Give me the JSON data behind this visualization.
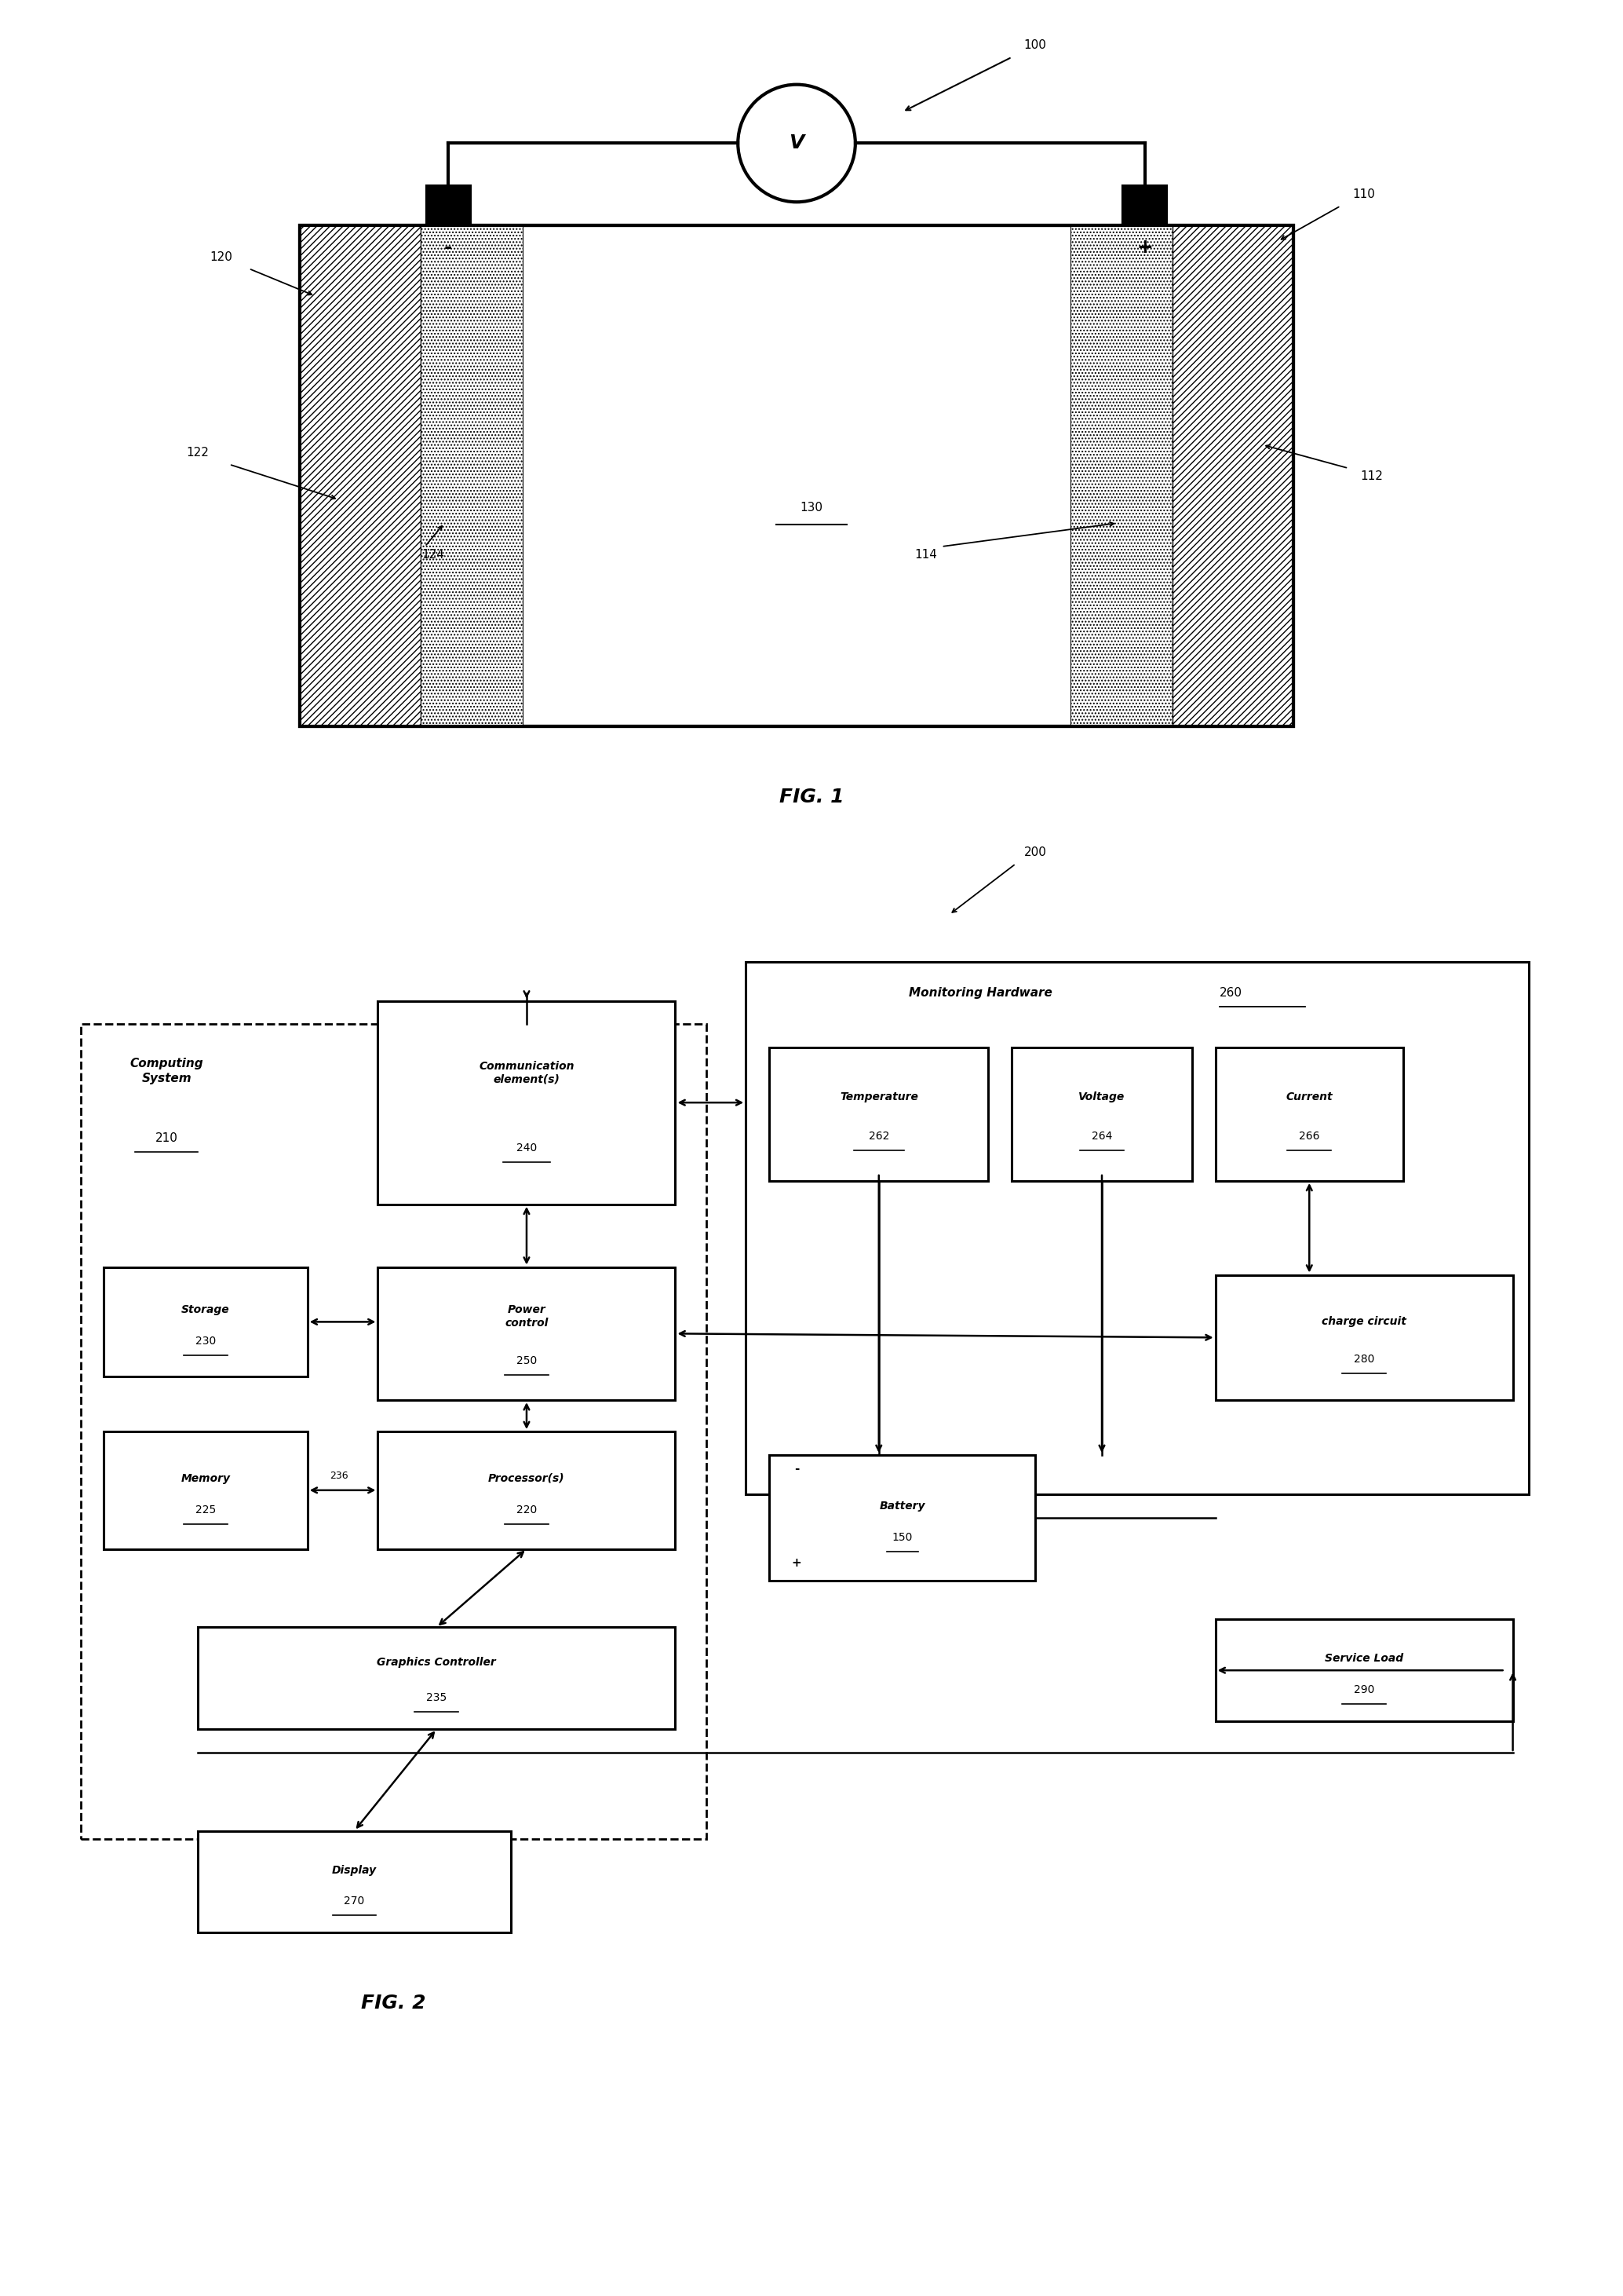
{
  "fig_width": 20.68,
  "fig_height": 29.24,
  "bg_color": "#ffffff",
  "fig1": {
    "label": "FIG. 1",
    "ref_100": "100",
    "ref_110": "110",
    "ref_120": "120",
    "ref_122": "122",
    "ref_124": "124",
    "ref_114": "114",
    "ref_112": "112",
    "ref_130": "130",
    "voltmeter_label": "V",
    "minus_label": "-",
    "plus_label": "+"
  },
  "fig2": {
    "label": "FIG. 2",
    "ref_200": "200",
    "computing_system": "Computing\nSystem",
    "ref_210": "210",
    "communication": "Communication\nelement(s)",
    "ref_240": "240",
    "power_control": "Power\ncontrol",
    "ref_250": "250",
    "storage": "Storage",
    "ref_230": "230",
    "memory": "Memory",
    "ref_225": "225",
    "processors": "Processor(s)",
    "ref_220": "220",
    "graphics": "Graphics Controller",
    "ref_235": "235",
    "display": "Display",
    "ref_270": "270",
    "monitoring": "Monitoring Hardware",
    "ref_260": "260",
    "temperature": "Temperature",
    "ref_262": "262",
    "voltage": "Voltage",
    "ref_264": "264",
    "current": "Current",
    "ref_266": "266",
    "charge_circuit": "charge circuit",
    "ref_280": "280",
    "battery_label": "Battery",
    "battery_ref": "150",
    "service_load": "Service Load",
    "ref_290": "290",
    "ref_236": "236"
  }
}
